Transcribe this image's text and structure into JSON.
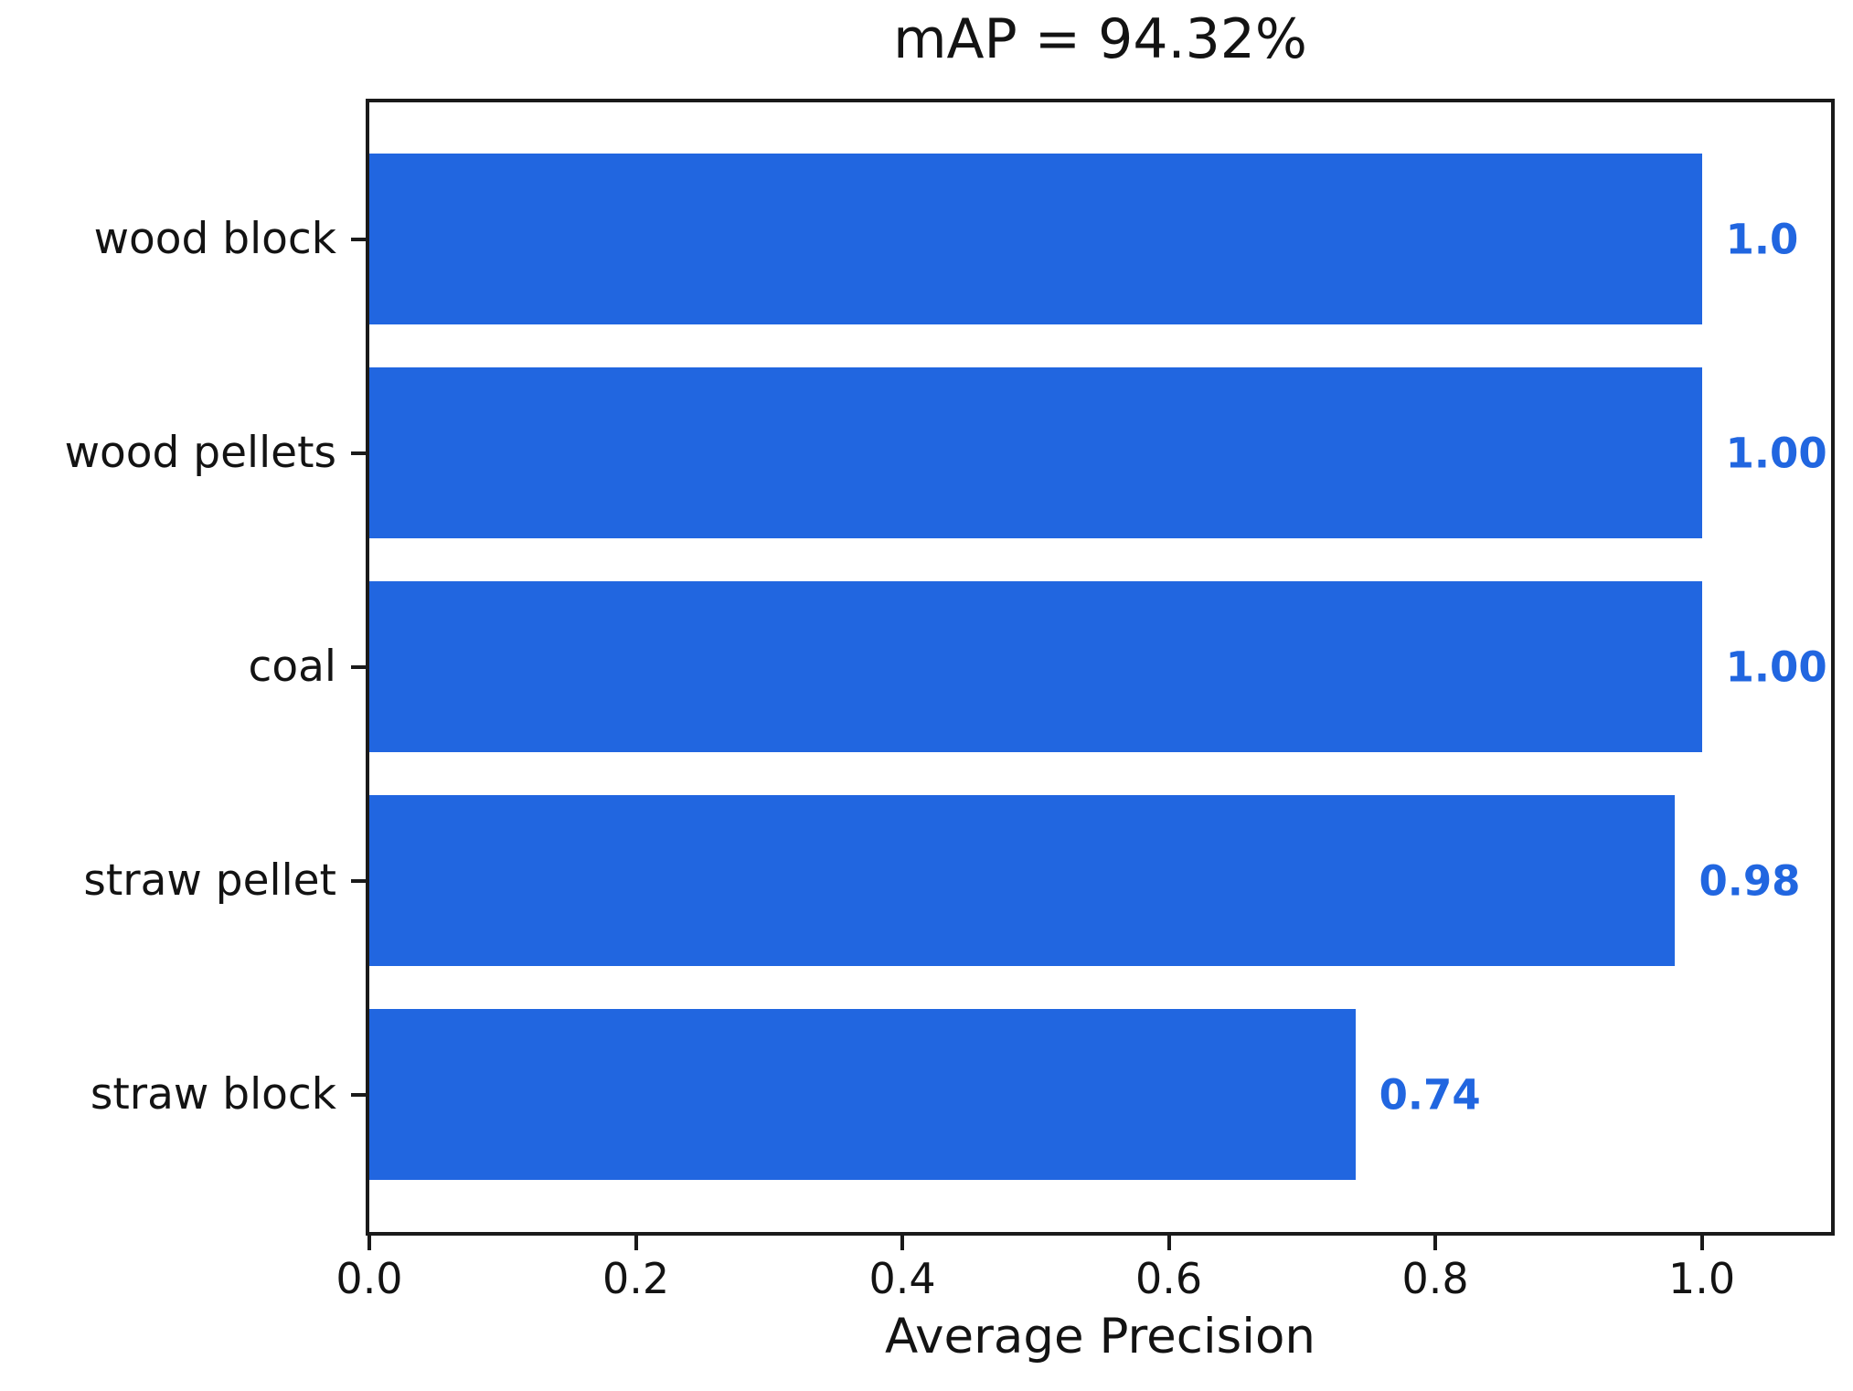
{
  "chart_data": {
    "type": "bar",
    "orientation": "horizontal",
    "title": "mAP = 94.32%",
    "xlabel": "Average Precision",
    "ylabel": "",
    "categories": [
      "wood block",
      "wood pellets",
      "coal",
      "straw pellet",
      "straw block"
    ],
    "values": [
      1.0,
      1.0,
      1.0,
      0.98,
      0.74
    ],
    "value_labels": [
      "1.0",
      "1.00",
      "1.00",
      "0.98",
      "0.74"
    ],
    "xticks": [
      0.0,
      0.2,
      0.4,
      0.6,
      0.8,
      1.0
    ],
    "xtick_labels": [
      "0.0",
      "0.2",
      "0.4",
      "0.6",
      "0.8",
      "1.0"
    ],
    "xlim": [
      0,
      1.097
    ],
    "grid": false,
    "legend": null,
    "bar_color": "#2166E0",
    "value_label_color": "#2166E0",
    "axis_color": "#1a1a1a"
  }
}
